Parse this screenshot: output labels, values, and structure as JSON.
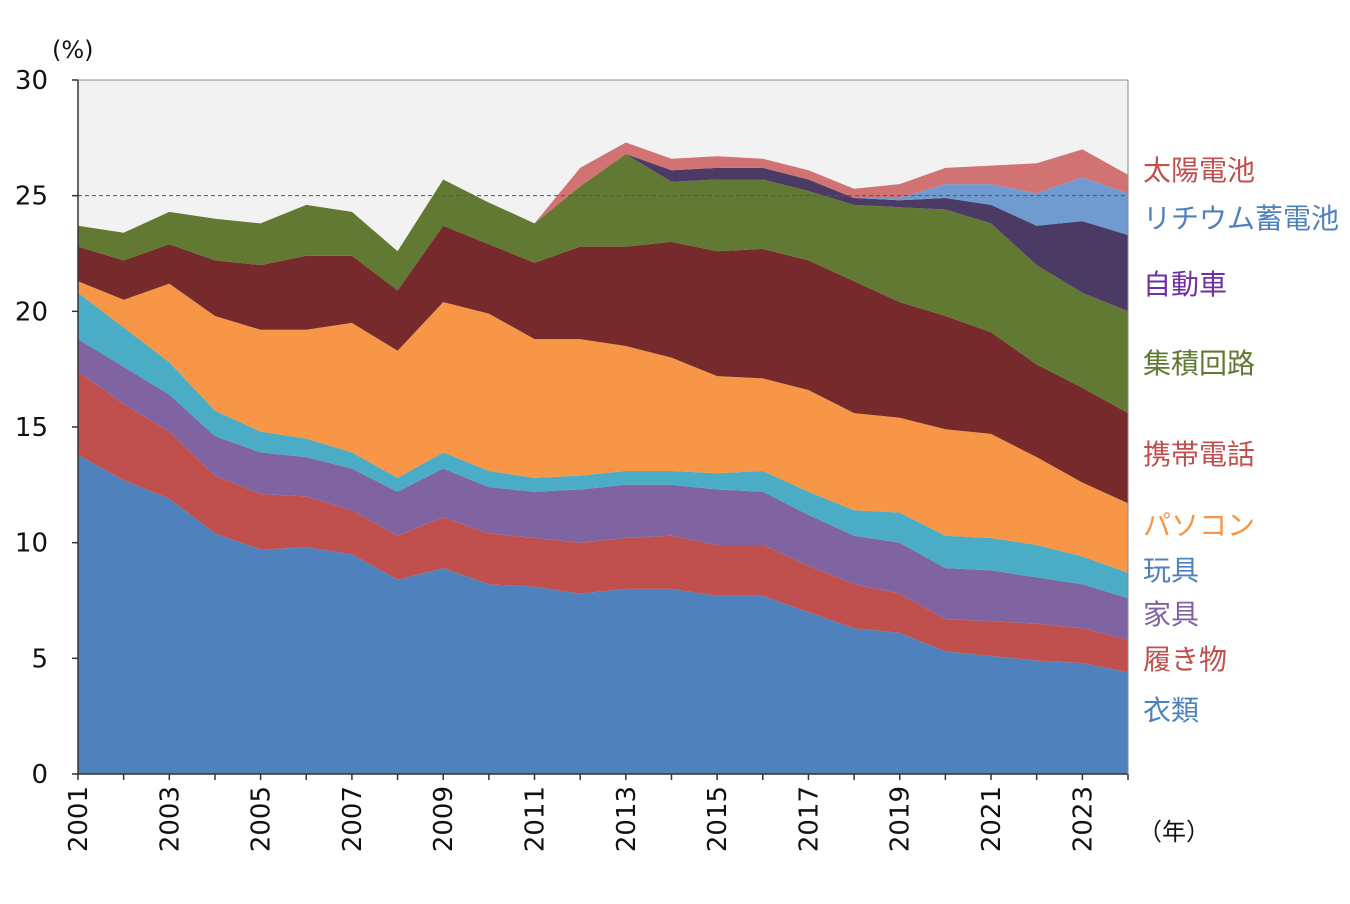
{
  "chart_data": {
    "type": "area",
    "stacked": true,
    "ylabel": "(%)",
    "xlabel": "（年）",
    "ylim": [
      0,
      30
    ],
    "yticks": [
      0,
      5,
      10,
      15,
      20,
      25,
      30
    ],
    "xlim": [
      2001,
      2024
    ],
    "xticks": [
      "2001",
      "2003",
      "2005",
      "2007",
      "2009",
      "2011",
      "2013",
      "2015",
      "2017",
      "2019",
      "2021",
      "2023"
    ],
    "reference_line": 25,
    "background": "#f2f2f2",
    "x": [
      2001,
      2002,
      2003,
      2004,
      2005,
      2006,
      2007,
      2008,
      2009,
      2010,
      2011,
      2012,
      2013,
      2014,
      2015,
      2016,
      2017,
      2018,
      2019,
      2020,
      2021,
      2022,
      2023,
      2024
    ],
    "series": [
      {
        "name": "衣類",
        "color": "#4f81bd",
        "label_color": "#4f81bd",
        "values": [
          13.8,
          12.7,
          11.9,
          10.4,
          9.7,
          9.8,
          9.5,
          8.4,
          8.9,
          8.2,
          8.1,
          7.8,
          8.0,
          8.0,
          7.7,
          7.7,
          7.0,
          6.3,
          6.1,
          5.3,
          5.1,
          4.9,
          4.8,
          4.4
        ]
      },
      {
        "name": "履き物",
        "color": "#c0504d",
        "label_color": "#c0504d",
        "values": [
          3.6,
          3.3,
          2.9,
          2.5,
          2.4,
          2.2,
          1.9,
          1.9,
          2.2,
          2.2,
          2.1,
          2.2,
          2.2,
          2.3,
          2.2,
          2.2,
          2.0,
          1.9,
          1.7,
          1.4,
          1.5,
          1.6,
          1.5,
          1.4
        ]
      },
      {
        "name": "家具",
        "color": "#8064a2",
        "label_color": "#8064a2",
        "values": [
          1.4,
          1.6,
          1.6,
          1.7,
          1.8,
          1.7,
          1.8,
          1.9,
          2.1,
          2.0,
          2.0,
          2.3,
          2.3,
          2.2,
          2.4,
          2.3,
          2.2,
          2.1,
          2.2,
          2.2,
          2.2,
          2.0,
          1.9,
          1.8
        ]
      },
      {
        "name": "玩具",
        "color": "#4bacc6",
        "label_color": "#4f81bd",
        "values": [
          2.0,
          1.7,
          1.4,
          1.1,
          0.9,
          0.8,
          0.7,
          0.6,
          0.7,
          0.7,
          0.6,
          0.6,
          0.6,
          0.6,
          0.7,
          0.9,
          1.0,
          1.1,
          1.3,
          1.4,
          1.4,
          1.4,
          1.2,
          1.1
        ]
      },
      {
        "name": "パソコン",
        "color": "#f79646",
        "label_color": "#f79646",
        "values": [
          0.5,
          1.2,
          3.4,
          4.1,
          4.4,
          4.7,
          5.6,
          5.5,
          6.5,
          6.8,
          6.0,
          5.9,
          5.4,
          4.9,
          4.2,
          4.0,
          4.4,
          4.2,
          4.1,
          4.6,
          4.5,
          3.8,
          3.2,
          3.0
        ]
      },
      {
        "name": "携帯電話",
        "color": "#772a2b",
        "label_color": "#c0504d",
        "values": [
          1.5,
          1.7,
          1.7,
          2.4,
          2.8,
          3.2,
          2.9,
          2.6,
          3.3,
          3.0,
          3.3,
          4.0,
          4.3,
          5.0,
          5.4,
          5.6,
          5.6,
          5.7,
          5.0,
          4.9,
          4.4,
          4.0,
          4.1,
          3.9
        ]
      },
      {
        "name": "集積回路",
        "color": "#617932",
        "label_color": "#617932",
        "values": [
          0.9,
          1.2,
          1.4,
          1.8,
          1.8,
          2.2,
          1.9,
          1.7,
          2.0,
          1.8,
          1.7,
          2.6,
          4.0,
          2.6,
          3.1,
          3.0,
          3.0,
          3.3,
          4.1,
          4.6,
          4.7,
          4.3,
          4.1,
          4.4
        ]
      },
      {
        "name": "自動車",
        "color": "#4b3a63",
        "label_color": "#7030a0",
        "values": [
          0,
          0,
          0,
          0,
          0,
          0,
          0,
          0,
          0,
          0,
          0,
          0,
          0,
          0.5,
          0.5,
          0.5,
          0.5,
          0.3,
          0.3,
          0.5,
          0.8,
          1.7,
          3.1,
          3.3
        ]
      },
      {
        "name": "リチウム蓄電池",
        "color": "#6f9bd0",
        "label_color": "#4f81bd",
        "values": [
          0,
          0,
          0,
          0,
          0,
          0,
          0,
          0,
          0,
          0,
          0,
          0,
          0,
          0,
          0,
          0,
          0,
          0,
          0.1,
          0.6,
          0.9,
          1.4,
          1.9,
          1.8
        ]
      },
      {
        "name": "太陽電池",
        "color": "#d17373",
        "label_color": "#c0504d",
        "values": [
          0,
          0,
          0,
          0,
          0,
          0,
          0,
          0,
          0,
          0,
          0,
          0.8,
          0.5,
          0.5,
          0.5,
          0.4,
          0.4,
          0.4,
          0.6,
          0.7,
          0.8,
          1.3,
          1.2,
          0.8
        ]
      }
    ]
  }
}
